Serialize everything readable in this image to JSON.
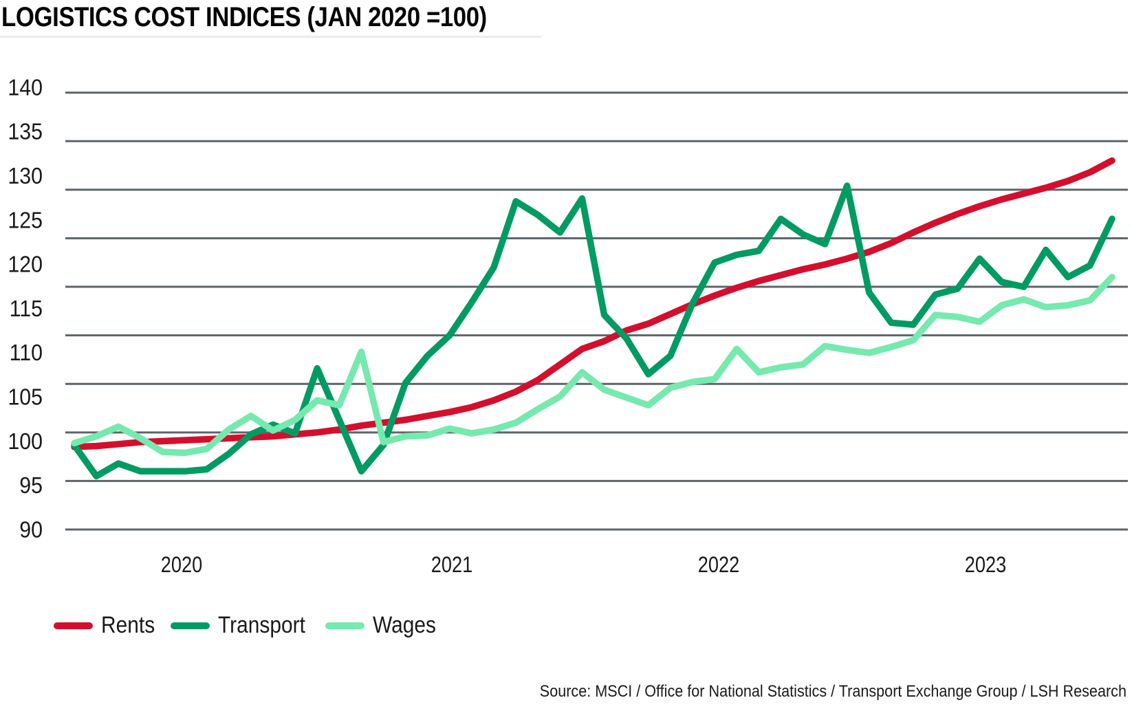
{
  "title": "LOGISTICS COST INDICES (JAN 2020 =100)",
  "source_note": "Source: MSCI / Office for National Statistics / Transport Exchange Group / LSH Research",
  "colors": {
    "rents": "#d40f2d",
    "transport": "#009b62",
    "wages": "#76e9ae",
    "gridline": "#5d6569",
    "text": "#1a1a1a",
    "title_rule": "#ececec",
    "background": "#ffffff"
  },
  "chart_data": {
    "type": "line",
    "title": "LOGISTICS COST INDICES (JAN 2020 =100)",
    "x_unit": "month",
    "x_start": "Jan 2020",
    "x_end": "Dec 2023",
    "points_per_series": 48,
    "x_tick_labels": [
      "2020",
      "2021",
      "2022",
      "2023"
    ],
    "y_axis_labels": [
      140,
      135,
      130,
      125,
      120,
      115,
      110,
      105,
      100,
      95,
      90
    ],
    "gridline_values": [
      135,
      130,
      125,
      120,
      115,
      110,
      105,
      100,
      95,
      90
    ],
    "ylim": [
      90,
      140
    ],
    "grid": "horizontal-only",
    "legend_position": "bottom-left",
    "series": [
      {
        "name": "Rents",
        "color": "#d40f2d",
        "values": [
          98.5,
          98.6,
          98.8,
          99.0,
          99.1,
          99.2,
          99.3,
          99.4,
          99.5,
          99.6,
          99.8,
          100.0,
          100.3,
          100.7,
          101.0,
          101.3,
          101.7,
          102.1,
          102.6,
          103.3,
          104.2,
          105.4,
          107.0,
          108.6,
          109.4,
          110.5,
          111.2,
          112.2,
          113.2,
          114.1,
          114.9,
          115.6,
          116.2,
          116.8,
          117.3,
          117.9,
          118.6,
          119.5,
          120.6,
          121.6,
          122.5,
          123.3,
          124.0,
          124.6,
          125.2,
          125.9,
          126.8,
          128.0
        ]
      },
      {
        "name": "Transport",
        "color": "#009b62",
        "values": [
          98.7,
          95.5,
          96.8,
          96.0,
          96.0,
          96.0,
          96.2,
          97.8,
          99.8,
          100.8,
          99.9,
          106.6,
          101.3,
          96.0,
          98.7,
          105.1,
          107.9,
          110.0,
          113.4,
          117.0,
          123.8,
          122.4,
          120.6,
          124.1,
          112.1,
          109.7,
          106.0,
          107.9,
          113.3,
          117.5,
          118.3,
          118.7,
          122.0,
          120.4,
          119.4,
          125.4,
          114.4,
          111.3,
          111.1,
          114.2,
          114.8,
          117.9,
          115.5,
          115.0,
          118.8,
          116.0,
          117.2,
          122.0
        ]
      },
      {
        "name": "Wages",
        "color": "#76e9ae",
        "values": [
          98.9,
          99.6,
          100.6,
          99.4,
          98.0,
          97.9,
          98.3,
          100.3,
          101.7,
          100.2,
          101.3,
          103.3,
          102.8,
          108.3,
          99.0,
          99.6,
          99.7,
          100.4,
          99.9,
          100.3,
          101.0,
          102.4,
          103.7,
          106.2,
          104.4,
          103.6,
          102.8,
          104.6,
          105.2,
          105.5,
          108.6,
          106.2,
          106.7,
          107.0,
          108.9,
          108.5,
          108.2,
          108.8,
          109.5,
          112.1,
          111.9,
          111.4,
          113.1,
          113.7,
          112.9,
          113.1,
          113.6,
          116.0
        ]
      }
    ]
  }
}
